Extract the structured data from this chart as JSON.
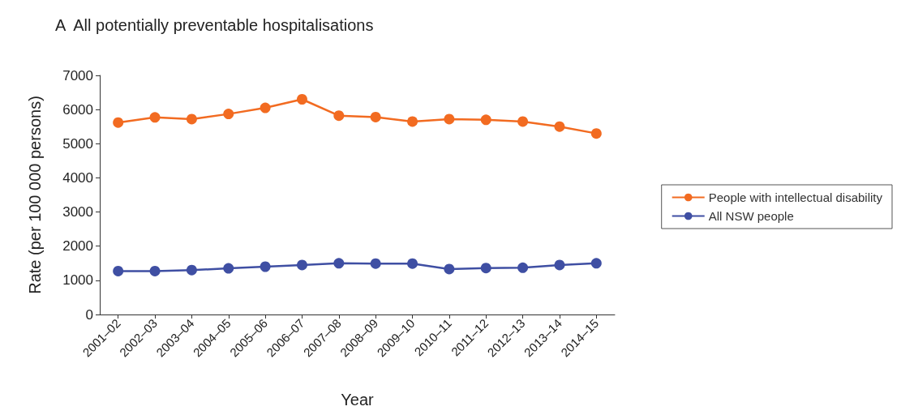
{
  "chart_data": {
    "type": "line",
    "title": "A  All potentially preventable hospitalisations",
    "xlabel": "Year",
    "ylabel": "Rate (per 100 000 persons)",
    "categories": [
      "2001–02",
      "2002–03",
      "2003–04",
      "2004–05",
      "2005–06",
      "2006–07",
      "2007–08",
      "2008–09",
      "2009–10",
      "2010–11",
      "2011–12",
      "2012–13",
      "2013–14",
      "2014–15"
    ],
    "series": [
      {
        "name": "People with intellectual disability",
        "color": "#f26b21",
        "values": [
          5620,
          5770,
          5720,
          5870,
          6050,
          6300,
          5820,
          5780,
          5650,
          5720,
          5700,
          5650,
          5500,
          5300
        ]
      },
      {
        "name": "All NSW people",
        "color": "#3f4fa3",
        "values": [
          1270,
          1270,
          1300,
          1350,
          1400,
          1450,
          1500,
          1490,
          1490,
          1330,
          1360,
          1370,
          1450,
          1500
        ]
      }
    ],
    "ylim": [
      0,
      7000
    ],
    "yticks": [
      0,
      1000,
      2000,
      3000,
      4000,
      5000,
      6000,
      7000
    ],
    "grid": false,
    "legend": "right",
    "marker": "circle",
    "line_style": "solid"
  }
}
